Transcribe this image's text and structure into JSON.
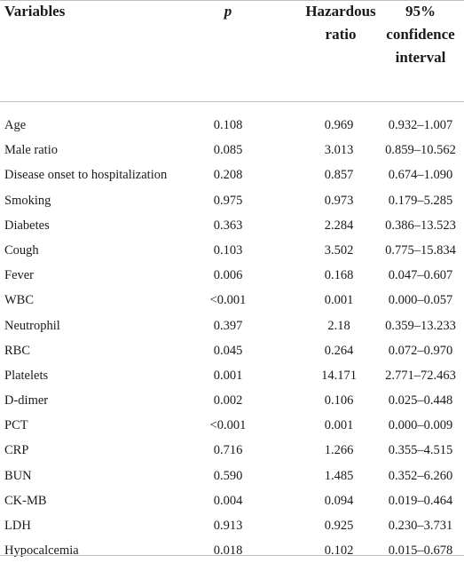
{
  "headers": {
    "variables": "Variables",
    "p": "p",
    "hazard_line1": "Hazardous",
    "hazard_line2": "ratio",
    "ci_line1": "95%",
    "ci_line2": "confidence",
    "ci_line3": "interval"
  },
  "rows": [
    {
      "variable": "Age",
      "p": "0.108",
      "hr": "0.969",
      "ci": "0.932–1.007"
    },
    {
      "variable": "Male ratio",
      "p": "0.085",
      "hr": "3.013",
      "ci": "0.859–10.562"
    },
    {
      "variable": "Disease onset to hospitalization",
      "p": "0.208",
      "hr": "0.857",
      "ci": "0.674–1.090"
    },
    {
      "variable": "Smoking",
      "p": "0.975",
      "hr": "0.973",
      "ci": "0.179–5.285"
    },
    {
      "variable": "Diabetes",
      "p": "0.363",
      "hr": "2.284",
      "ci": "0.386–13.523"
    },
    {
      "variable": "Cough",
      "p": "0.103",
      "hr": "3.502",
      "ci": "0.775–15.834"
    },
    {
      "variable": "Fever",
      "p": "0.006",
      "hr": "0.168",
      "ci": "0.047–0.607"
    },
    {
      "variable": "WBC",
      "p": "<0.001",
      "hr": "0.001",
      "ci": "0.000–0.057"
    },
    {
      "variable": "Neutrophil",
      "p": "0.397",
      "hr": "2.18",
      "ci": "0.359–13.233"
    },
    {
      "variable": "RBC",
      "p": "0.045",
      "hr": "0.264",
      "ci": "0.072–0.970"
    },
    {
      "variable": "Platelets",
      "p": "0.001",
      "hr": "14.171",
      "ci": "2.771–72.463"
    },
    {
      "variable": "D-dimer",
      "p": "0.002",
      "hr": "0.106",
      "ci": "0.025–0.448"
    },
    {
      "variable": "PCT",
      "p": "<0.001",
      "hr": "0.001",
      "ci": "0.000–0.009"
    },
    {
      "variable": "CRP",
      "p": "0.716",
      "hr": "1.266",
      "ci": "0.355–4.515"
    },
    {
      "variable": "BUN",
      "p": "0.590",
      "hr": "1.485",
      "ci": "0.352–6.260"
    },
    {
      "variable": "CK-MB",
      "p": "0.004",
      "hr": "0.094",
      "ci": "0.019–0.464"
    },
    {
      "variable": "LDH",
      "p": "0.913",
      "hr": "0.925",
      "ci": "0.230–3.731"
    },
    {
      "variable": "Hypocalcemia",
      "p": "0.018",
      "hr": "0.102",
      "ci": "0.015–0.678"
    }
  ]
}
